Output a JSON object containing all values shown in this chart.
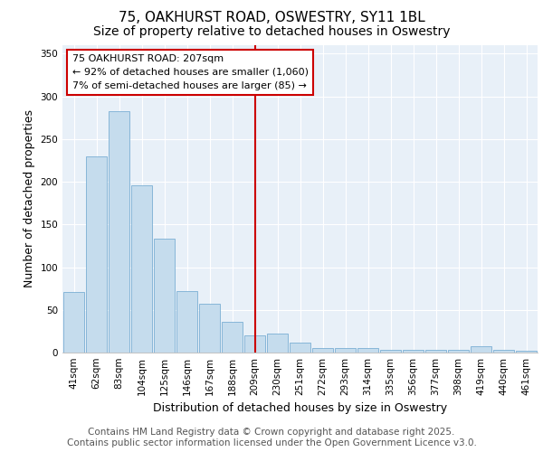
{
  "title": "75, OAKHURST ROAD, OSWESTRY, SY11 1BL",
  "subtitle": "Size of property relative to detached houses in Oswestry",
  "xlabel": "Distribution of detached houses by size in Oswestry",
  "ylabel": "Number of detached properties",
  "categories": [
    "41sqm",
    "62sqm",
    "83sqm",
    "104sqm",
    "125sqm",
    "146sqm",
    "167sqm",
    "188sqm",
    "209sqm",
    "230sqm",
    "251sqm",
    "272sqm",
    "293sqm",
    "314sqm",
    "335sqm",
    "356sqm",
    "377sqm",
    "398sqm",
    "419sqm",
    "440sqm",
    "461sqm"
  ],
  "values": [
    71,
    230,
    283,
    196,
    133,
    72,
    57,
    36,
    20,
    22,
    12,
    5,
    5,
    5,
    3,
    3,
    3,
    3,
    7,
    3,
    2
  ],
  "bar_color": "#c5dced",
  "bar_edge_color": "#7bafd4",
  "vline_x_index": 8,
  "vline_color": "#cc0000",
  "annotation_text": "75 OAKHURST ROAD: 207sqm\n← 92% of detached houses are smaller (1,060)\n7% of semi-detached houses are larger (85) →",
  "annotation_box_color": "#cc0000",
  "ylim": [
    0,
    360
  ],
  "yticks": [
    0,
    50,
    100,
    150,
    200,
    250,
    300,
    350
  ],
  "background_color": "#e8f0f8",
  "footer_text": "Contains HM Land Registry data © Crown copyright and database right 2025.\nContains public sector information licensed under the Open Government Licence v3.0.",
  "title_fontsize": 11,
  "subtitle_fontsize": 10,
  "axis_label_fontsize": 9,
  "tick_fontsize": 7.5,
  "footer_fontsize": 7.5,
  "ann_fontsize": 8
}
